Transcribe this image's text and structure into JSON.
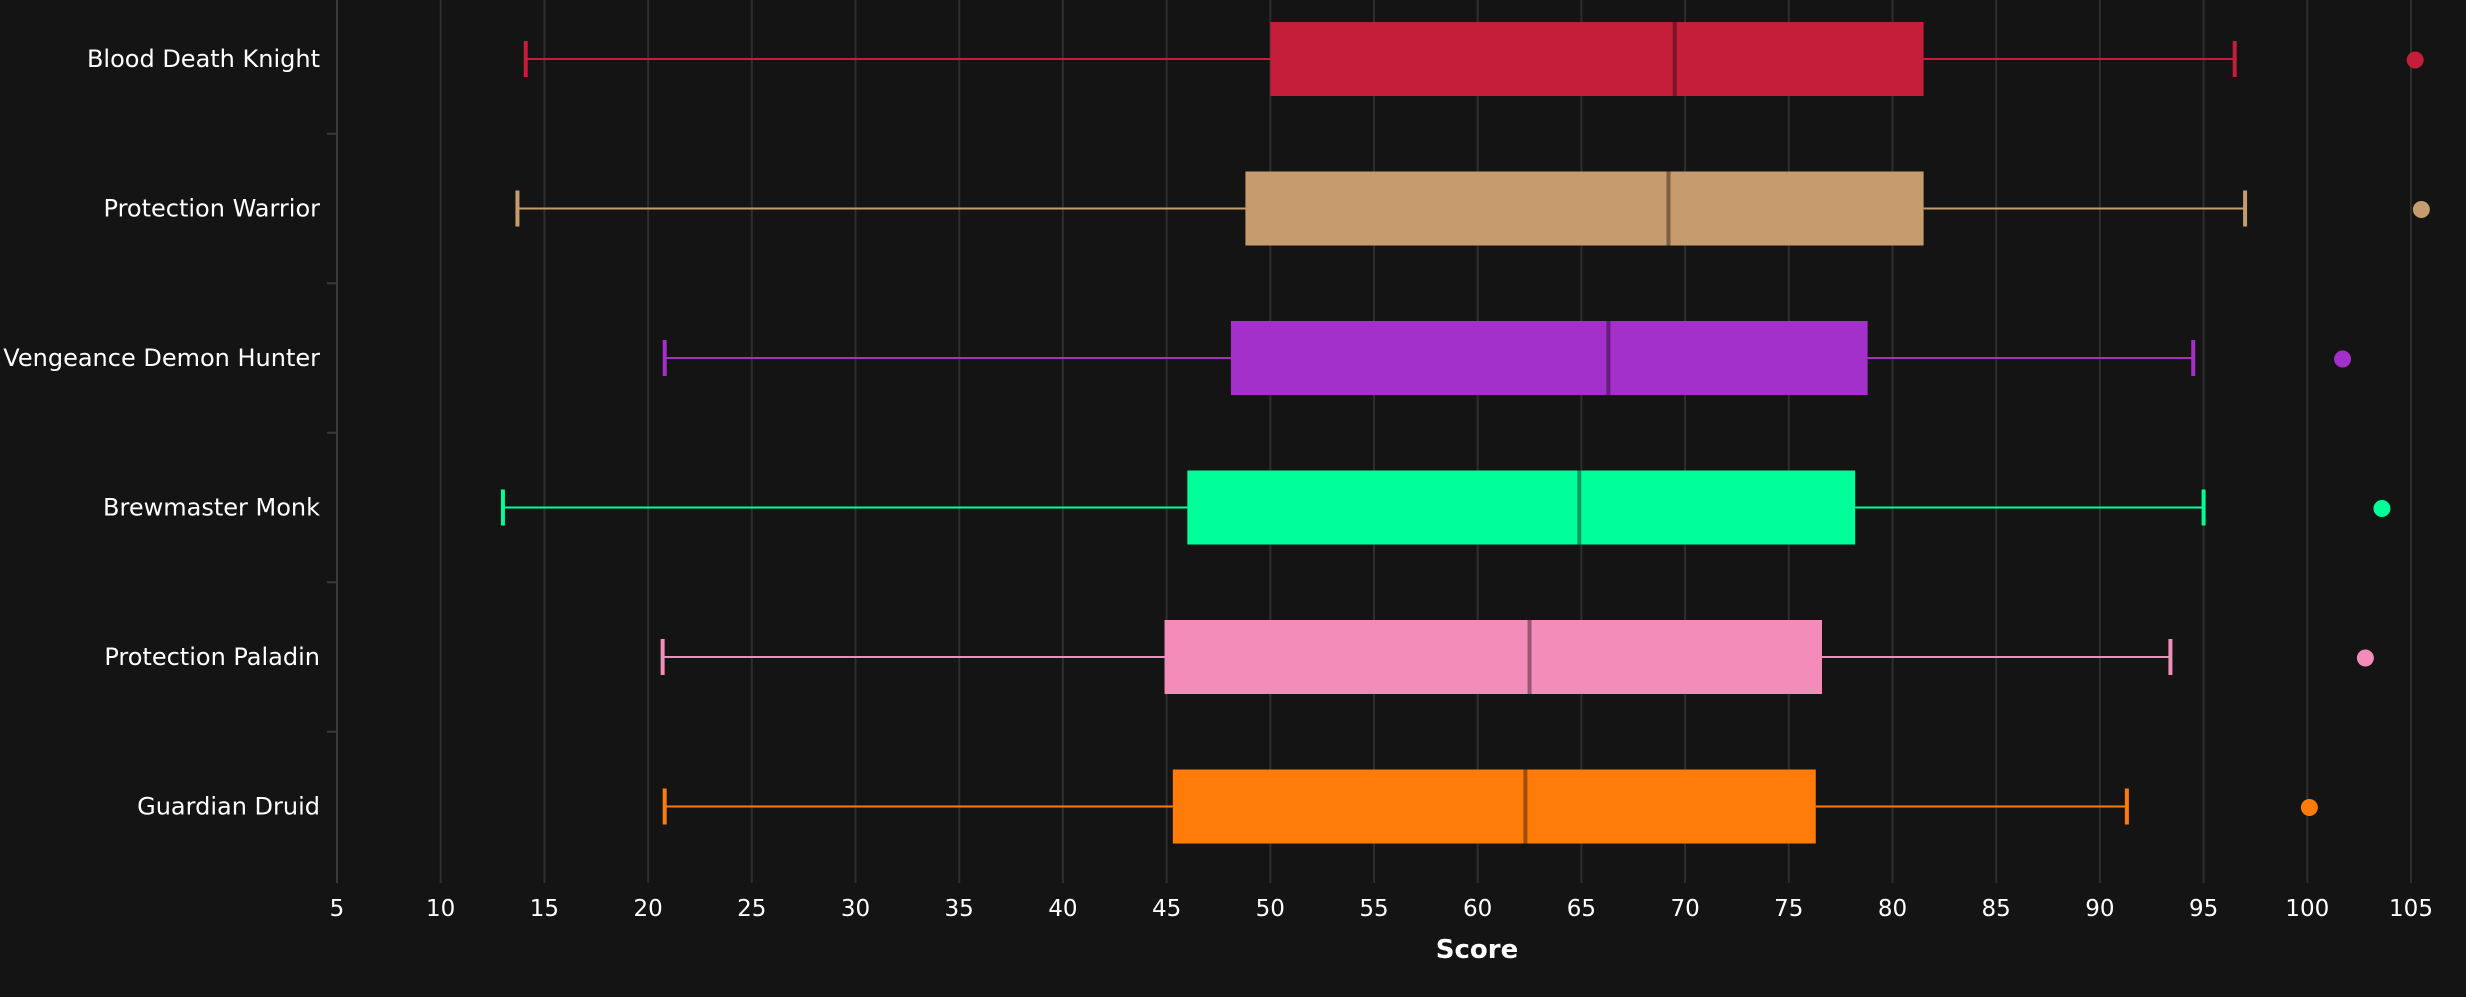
{
  "chart_data": {
    "type": "boxplot",
    "orientation": "horizontal",
    "title": "",
    "xlabel": "Score",
    "ylabel": "",
    "xlim": [
      5,
      105
    ],
    "xticks": [
      5,
      10,
      15,
      20,
      25,
      30,
      35,
      40,
      45,
      50,
      55,
      60,
      65,
      70,
      75,
      80,
      85,
      90,
      95,
      100,
      105
    ],
    "grid": "vertical",
    "background": "#141414",
    "categories": [
      "Blood Death Knight",
      "Protection Warrior",
      "Vengeance Demon Hunter",
      "Brewmaster Monk",
      "Protection Paladin",
      "Guardian Druid"
    ],
    "boxes": [
      {
        "name": "Blood Death Knight",
        "color": "#C41E3A",
        "min": 14.1,
        "q1": 50.0,
        "median": 69.5,
        "q3": 81.5,
        "max": 96.5,
        "outliers": [
          105.2
        ]
      },
      {
        "name": "Protection Warrior",
        "color": "#C69B6D",
        "min": 13.7,
        "q1": 48.8,
        "median": 69.2,
        "q3": 81.5,
        "max": 97.0,
        "outliers": [
          105.5
        ]
      },
      {
        "name": "Vengeance Demon Hunter",
        "color": "#A330C9",
        "min": 20.8,
        "q1": 48.1,
        "median": 66.3,
        "q3": 78.8,
        "max": 94.5,
        "outliers": [
          101.7
        ]
      },
      {
        "name": "Brewmaster Monk",
        "color": "#00FF98",
        "min": 13.0,
        "q1": 46.0,
        "median": 64.9,
        "q3": 78.2,
        "max": 95.0,
        "outliers": [
          103.6
        ]
      },
      {
        "name": "Protection Paladin",
        "color": "#F48CBA",
        "min": 20.7,
        "q1": 44.9,
        "median": 62.5,
        "q3": 76.6,
        "max": 93.4,
        "outliers": [
          102.8
        ]
      },
      {
        "name": "Guardian Druid",
        "color": "#FF7C0A",
        "min": 20.8,
        "q1": 45.3,
        "median": 62.3,
        "q3": 76.3,
        "max": 91.3,
        "outliers": [
          100.1
        ]
      }
    ]
  }
}
